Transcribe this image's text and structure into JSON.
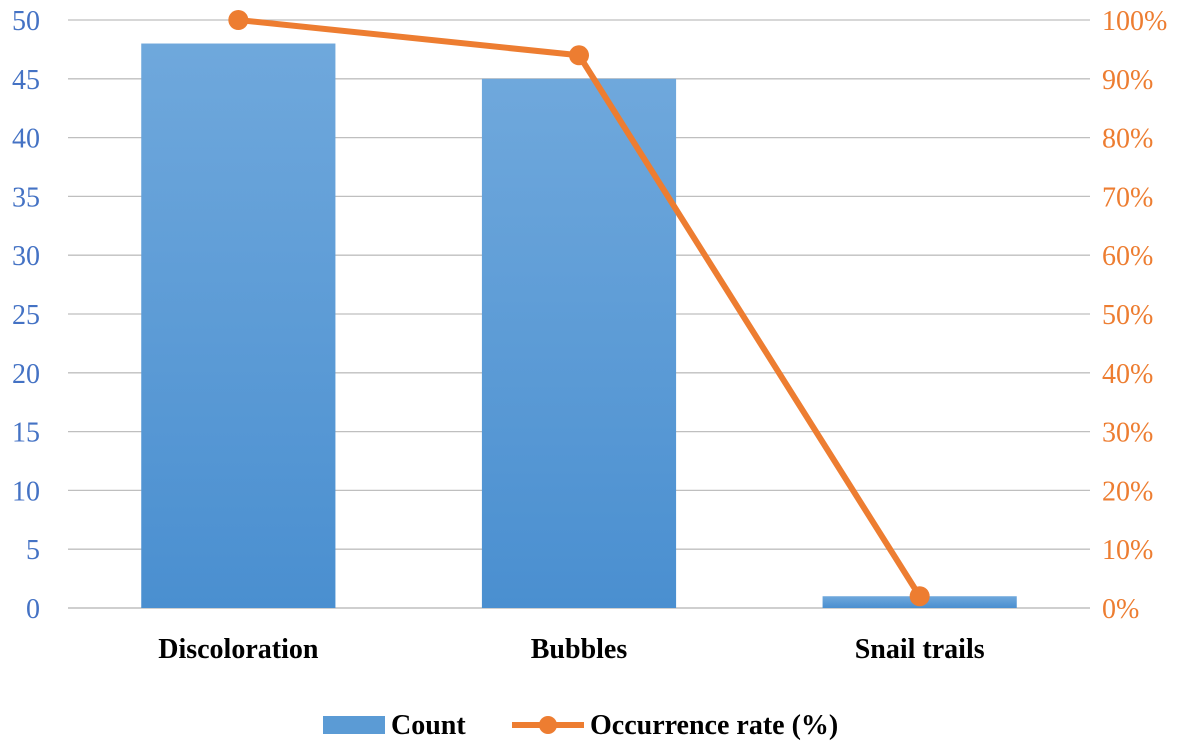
{
  "chart_data": {
    "type": "bar",
    "categories": [
      "Discoloration",
      "Bubbles",
      "Snail trails"
    ],
    "series": [
      {
        "name": "Count",
        "type": "bar",
        "axis": "left",
        "values": [
          48,
          45,
          1
        ],
        "color": "#5B9BD5"
      },
      {
        "name": "Occurrence rate (%)",
        "type": "line",
        "axis": "right",
        "values": [
          100,
          94,
          2
        ],
        "color": "#ED7D31"
      }
    ],
    "y_left": {
      "min": 0,
      "max": 50,
      "step": 5,
      "tick_color": "#4472C4"
    },
    "y_right": {
      "min": 0,
      "max": 100,
      "step": 10,
      "suffix": "%",
      "tick_color": "#ED7D31"
    },
    "grid": true,
    "legend": "bottom-center"
  }
}
